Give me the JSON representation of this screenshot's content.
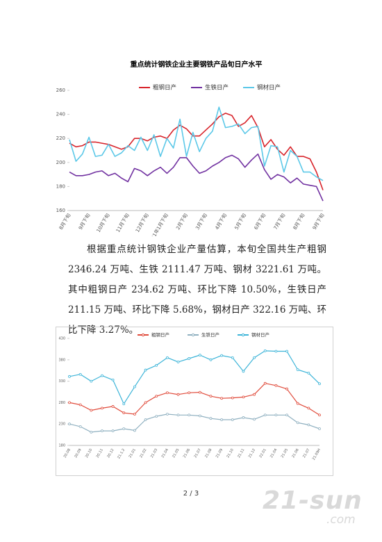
{
  "chart_data": [
    {
      "type": "line",
      "title": "重点统计钢铁企业主要钢铁产品旬日产水平",
      "categories": [
        "8月下旬",
        null,
        null,
        "9月下旬",
        null,
        null,
        "10月下旬",
        null,
        null,
        "11月下旬",
        null,
        null,
        "12月下旬",
        null,
        null,
        "21年1月下旬",
        null,
        null,
        "2月下旬",
        null,
        null,
        "3月下旬",
        null,
        null,
        "4月下旬",
        null,
        null,
        "5月下旬",
        null,
        null,
        "6月下旬",
        null,
        null,
        "7月下旬",
        null,
        null,
        "8月下旬",
        null,
        null,
        "9月下旬"
      ],
      "series": [
        {
          "name": "粗钢日产",
          "color": "#d8232a",
          "values": [
            216,
            213,
            214,
            217,
            217,
            216,
            215,
            213,
            211,
            213,
            220,
            220,
            218,
            221,
            222,
            220,
            227,
            231,
            228,
            222,
            222,
            227,
            232,
            238,
            241,
            239,
            230,
            233,
            239,
            229,
            213,
            219,
            211,
            206,
            213,
            205,
            205,
            203,
            192,
            177
          ]
        },
        {
          "name": "生铁日产",
          "color": "#7030a0",
          "values": [
            192,
            189,
            189,
            190,
            192,
            193,
            189,
            191,
            187,
            184,
            195,
            193,
            189,
            193,
            196,
            191,
            196,
            204,
            204,
            197,
            191,
            193,
            197,
            200,
            204,
            206,
            203,
            196,
            202,
            207,
            194,
            186,
            190,
            188,
            183,
            187,
            182,
            181,
            180,
            168
          ]
        },
        {
          "name": "钢材日产",
          "color": "#5bc8e8",
          "values": [
            219,
            201,
            207,
            221,
            205,
            206,
            215,
            205,
            208,
            214,
            210,
            221,
            210,
            223,
            205,
            220,
            212,
            236,
            205,
            225,
            209,
            220,
            226,
            246,
            229,
            230,
            232,
            224,
            229,
            230,
            197,
            214,
            213,
            192,
            210,
            205,
            192,
            192,
            188,
            185
          ]
        }
      ],
      "ylim": [
        160,
        260
      ],
      "yticks": [
        160,
        180,
        200,
        220,
        240,
        260
      ],
      "grid": false,
      "markers": false
    },
    {
      "type": "line",
      "categories": [
        "20.08",
        "20.09",
        "20.10",
        "20.11",
        "20.12",
        "21.1.2",
        "21.01",
        "21.02",
        "21.03",
        "21.04",
        "21.05",
        "21.06",
        "21.07",
        "21.08",
        "21.09",
        "21.10",
        "21.11",
        "21.12",
        "22.01",
        "21.04",
        "21.05",
        "21.06",
        "21.07",
        "21.09H"
      ],
      "series": [
        {
          "name": "粗钢日产",
          "color": "#e04a3a",
          "values": [
            280,
            275,
            262,
            267,
            271,
            256,
            253,
            280,
            295,
            303,
            299,
            303,
            304,
            295,
            290,
            291,
            293,
            299,
            325,
            320,
            312,
            278,
            267,
            251
          ]
        },
        {
          "name": "生铁日产",
          "color": "#8fb0c0",
          "values": [
            230,
            224,
            211,
            214,
            214,
            219,
            215,
            240,
            248,
            253,
            251,
            251,
            249,
            243,
            240,
            240,
            245,
            241,
            251,
            251,
            251,
            233,
            228,
            219
          ]
        },
        {
          "name": "钢材日产",
          "color": "#3cb4d8",
          "values": [
            341,
            346,
            330,
            343,
            333,
            277,
            317,
            356,
            367,
            385,
            375,
            383,
            391,
            380,
            390,
            385,
            353,
            385,
            401,
            400,
            400,
            357,
            349,
            324
          ]
        }
      ],
      "ylim": [
        180,
        430
      ],
      "yticks": [
        180,
        230,
        280,
        330,
        380,
        430
      ],
      "grid": false,
      "markers": true
    }
  ],
  "paragraph": "根据重点统计钢铁企业产量估算，本旬全国共生产粗钢 2346.24 万吨、生铁 2111.47 万吨、钢材 3221.61 万吨。其中粗钢日产 234.62 万吨、环比下降 10.50%，生铁日产 211.15 万吨、环比下降 5.68%，钢材日产 322.16 万吨、环比下降 3.27%。",
  "page_number": "2 / 3",
  "watermark": {
    "main": "21-sun",
    "sub": ".com"
  }
}
